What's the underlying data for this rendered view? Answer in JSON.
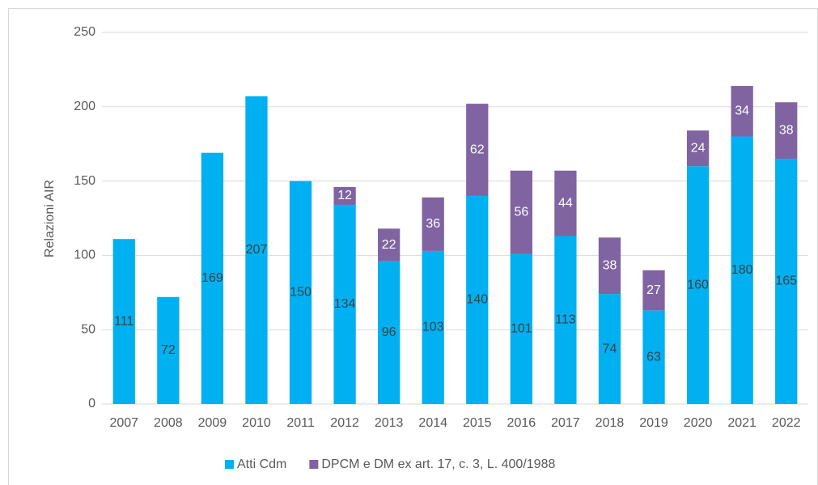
{
  "chart_data": {
    "type": "stacked_bar",
    "y_label": "Relazioni AIR",
    "categories": [
      "2007",
      "2008",
      "2009",
      "2010",
      "2011",
      "2012",
      "2013",
      "2014",
      "2015",
      "2016",
      "2017",
      "2018",
      "2019",
      "2020",
      "2021",
      "2022"
    ],
    "series": [
      {
        "name": "Atti Cdm",
        "color": "#00b0f0",
        "label_color": "#404040",
        "values": [
          111,
          72,
          169,
          207,
          150,
          134,
          96,
          103,
          140,
          101,
          113,
          74,
          63,
          160,
          180,
          165
        ]
      },
      {
        "name": "DPCM e DM ex art. 17, c. 3, L. 400/1988",
        "color": "#8064a2",
        "label_color": "#ffffff",
        "values": [
          null,
          null,
          null,
          null,
          null,
          12,
          22,
          36,
          62,
          56,
          44,
          38,
          27,
          24,
          34,
          38
        ]
      }
    ],
    "ylim": [
      0,
      250
    ],
    "yticks": [
      0,
      50,
      100,
      150,
      200,
      250
    ],
    "grid": true,
    "legend": "bottom"
  }
}
